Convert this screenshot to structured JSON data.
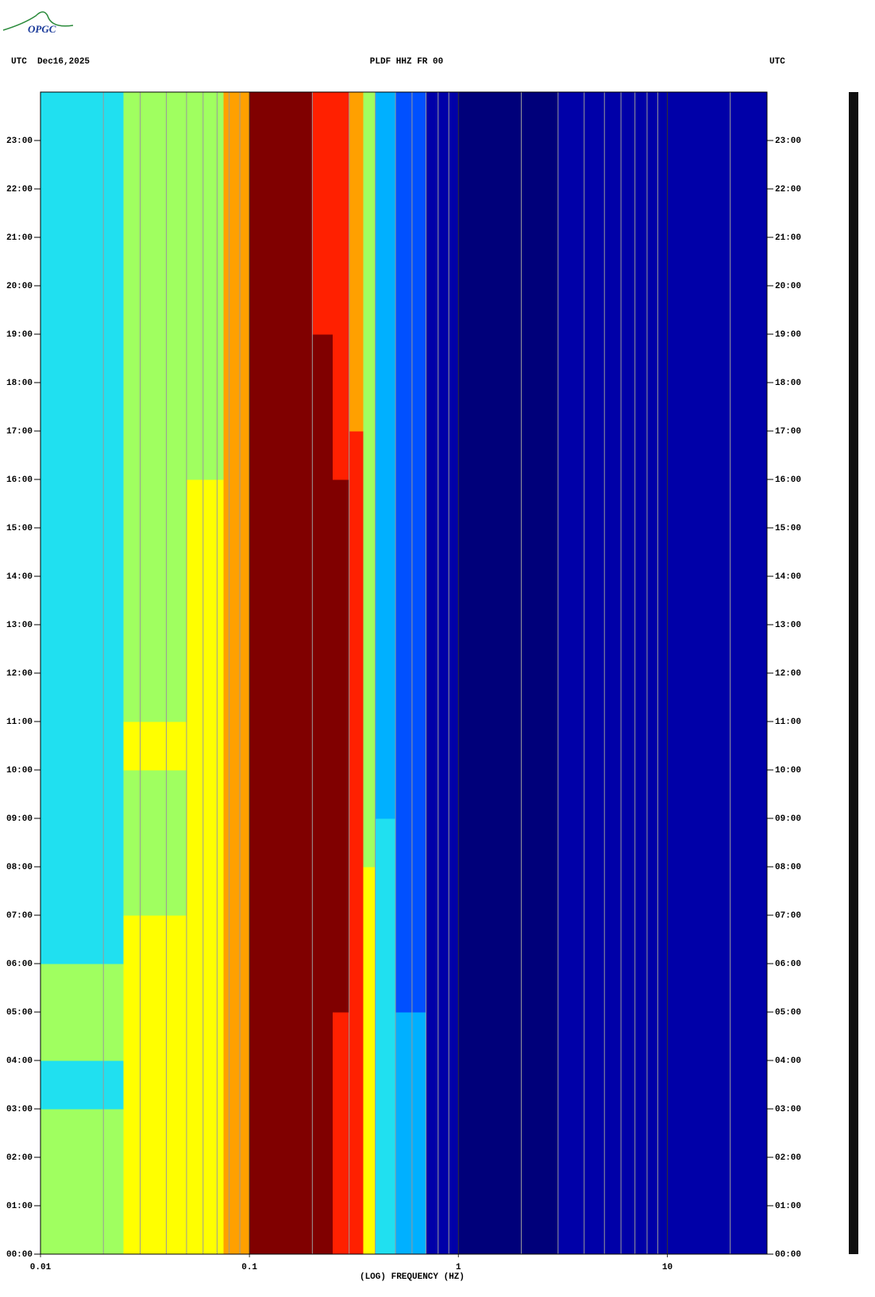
{
  "chart_data": {
    "type": "heatmap",
    "logo": "OPGC",
    "title_left": "UTC  Dec16,2025",
    "title": "PLDF HHZ FR 00",
    "title_right": "UTC",
    "xlabel": "(LOG) FREQUENCY (HZ)",
    "xscale": "log",
    "xlim": [
      0.01,
      30
    ],
    "xticks": [
      {
        "value": 0.01,
        "label": "0.01"
      },
      {
        "value": 0.1,
        "label": "0.1"
      },
      1,
      10
    ],
    "xminorticks": [
      0.02,
      0.03,
      0.04,
      0.05,
      0.06,
      0.07,
      0.08,
      0.09,
      0.2,
      0.3,
      0.4,
      0.5,
      0.6,
      0.7,
      0.8,
      0.9,
      2,
      3,
      4,
      5,
      6,
      7,
      8,
      9,
      20
    ],
    "ylim": [
      0,
      24
    ],
    "yticks": [
      {
        "value": 0,
        "label": "00:00"
      },
      {
        "value": 1,
        "label": "01:00"
      },
      {
        "value": 2,
        "label": "02:00"
      },
      {
        "value": 3,
        "label": "03:00"
      },
      {
        "value": 4,
        "label": "04:00"
      },
      {
        "value": 5,
        "label": "05:00"
      },
      {
        "value": 6,
        "label": "06:00"
      },
      {
        "value": 7,
        "label": "07:00"
      },
      {
        "value": 8,
        "label": "08:00"
      },
      {
        "value": 9,
        "label": "09:00"
      },
      {
        "value": 10,
        "label": "10:00"
      },
      {
        "value": 11,
        "label": "11:00"
      },
      {
        "value": 12,
        "label": "12:00"
      },
      {
        "value": 13,
        "label": "13:00"
      },
      {
        "value": 14,
        "label": "14:00"
      },
      {
        "value": 15,
        "label": "15:00"
      },
      {
        "value": 16,
        "label": "16:00"
      },
      {
        "value": 17,
        "label": "17:00"
      },
      {
        "value": 18,
        "label": "18:00"
      },
      {
        "value": 19,
        "label": "19:00"
      },
      {
        "value": 20,
        "label": "20:00"
      },
      {
        "value": 21,
        "label": "21:00"
      },
      {
        "value": 22,
        "label": "22:00"
      },
      {
        "value": 23,
        "label": "23:00"
      }
    ],
    "xbins": [
      0.01,
      0.025,
      0.05,
      0.075,
      0.1,
      0.2,
      0.25,
      0.3,
      0.35,
      0.4,
      0.5,
      0.7,
      1,
      3,
      10,
      30
    ],
    "colors": [
      "#00007a",
      "#0000a8",
      "#0000d4",
      "#0050ff",
      "#00b0ff",
      "#20e0f0",
      "#a0ff60",
      "#ffff00",
      "#ffa000",
      "#ff2000",
      "#800000"
    ],
    "z": [
      [
        6,
        7,
        7,
        8,
        10,
        10,
        9,
        9,
        7,
        5,
        4,
        1,
        0,
        1,
        1
      ],
      [
        6,
        7,
        7,
        8,
        10,
        10,
        9,
        9,
        7,
        5,
        4,
        1,
        0,
        1,
        1
      ],
      [
        6,
        7,
        7,
        8,
        10,
        10,
        9,
        9,
        7,
        5,
        4,
        1,
        0,
        1,
        1
      ],
      [
        5,
        7,
        7,
        8,
        10,
        10,
        9,
        9,
        7,
        5,
        4,
        1,
        0,
        1,
        1
      ],
      [
        6,
        7,
        7,
        8,
        10,
        10,
        9,
        9,
        7,
        5,
        4,
        1,
        0,
        1,
        1
      ],
      [
        6,
        7,
        7,
        8,
        10,
        10,
        10,
        9,
        7,
        5,
        3,
        1,
        0,
        1,
        1
      ],
      [
        5,
        7,
        7,
        8,
        10,
        10,
        10,
        9,
        7,
        5,
        3,
        1,
        0,
        1,
        1
      ],
      [
        5,
        6,
        7,
        8,
        10,
        10,
        10,
        9,
        7,
        5,
        3,
        1,
        0,
        1,
        1
      ],
      [
        5,
        6,
        7,
        8,
        10,
        10,
        10,
        9,
        6,
        5,
        3,
        1,
        0,
        1,
        1
      ],
      [
        5,
        6,
        7,
        8,
        10,
        10,
        10,
        9,
        6,
        4,
        3,
        1,
        0,
        1,
        1
      ],
      [
        5,
        7,
        7,
        8,
        10,
        10,
        10,
        9,
        6,
        4,
        3,
        1,
        0,
        1,
        1
      ],
      [
        5,
        6,
        7,
        8,
        10,
        10,
        10,
        9,
        6,
        4,
        3,
        1,
        0,
        1,
        1
      ],
      [
        5,
        6,
        7,
        8,
        10,
        10,
        10,
        9,
        6,
        4,
        3,
        1,
        0,
        1,
        1
      ],
      [
        5,
        6,
        7,
        8,
        10,
        10,
        10,
        9,
        6,
        4,
        3,
        1,
        0,
        1,
        1
      ],
      [
        5,
        6,
        7,
        8,
        10,
        10,
        10,
        9,
        6,
        4,
        3,
        1,
        0,
        1,
        1
      ],
      [
        5,
        6,
        7,
        8,
        10,
        10,
        10,
        9,
        6,
        4,
        3,
        1,
        0,
        1,
        1
      ],
      [
        5,
        6,
        6,
        8,
        10,
        10,
        9,
        9,
        6,
        4,
        3,
        1,
        0,
        1,
        1
      ],
      [
        5,
        6,
        6,
        8,
        10,
        10,
        9,
        8,
        6,
        4,
        3,
        1,
        0,
        1,
        1
      ],
      [
        5,
        6,
        6,
        8,
        10,
        10,
        9,
        8,
        6,
        4,
        3,
        1,
        0,
        1,
        1
      ],
      [
        5,
        6,
        6,
        8,
        10,
        9,
        9,
        8,
        6,
        4,
        3,
        1,
        0,
        1,
        1
      ],
      [
        5,
        6,
        6,
        8,
        10,
        9,
        9,
        8,
        6,
        4,
        3,
        1,
        0,
        1,
        1
      ],
      [
        5,
        6,
        6,
        8,
        10,
        9,
        9,
        8,
        6,
        4,
        3,
        1,
        0,
        1,
        1
      ],
      [
        5,
        6,
        6,
        8,
        10,
        9,
        9,
        8,
        6,
        4,
        3,
        1,
        0,
        1,
        1
      ],
      [
        5,
        6,
        6,
        8,
        10,
        9,
        9,
        8,
        6,
        4,
        3,
        1,
        0,
        1,
        1
      ]
    ]
  }
}
